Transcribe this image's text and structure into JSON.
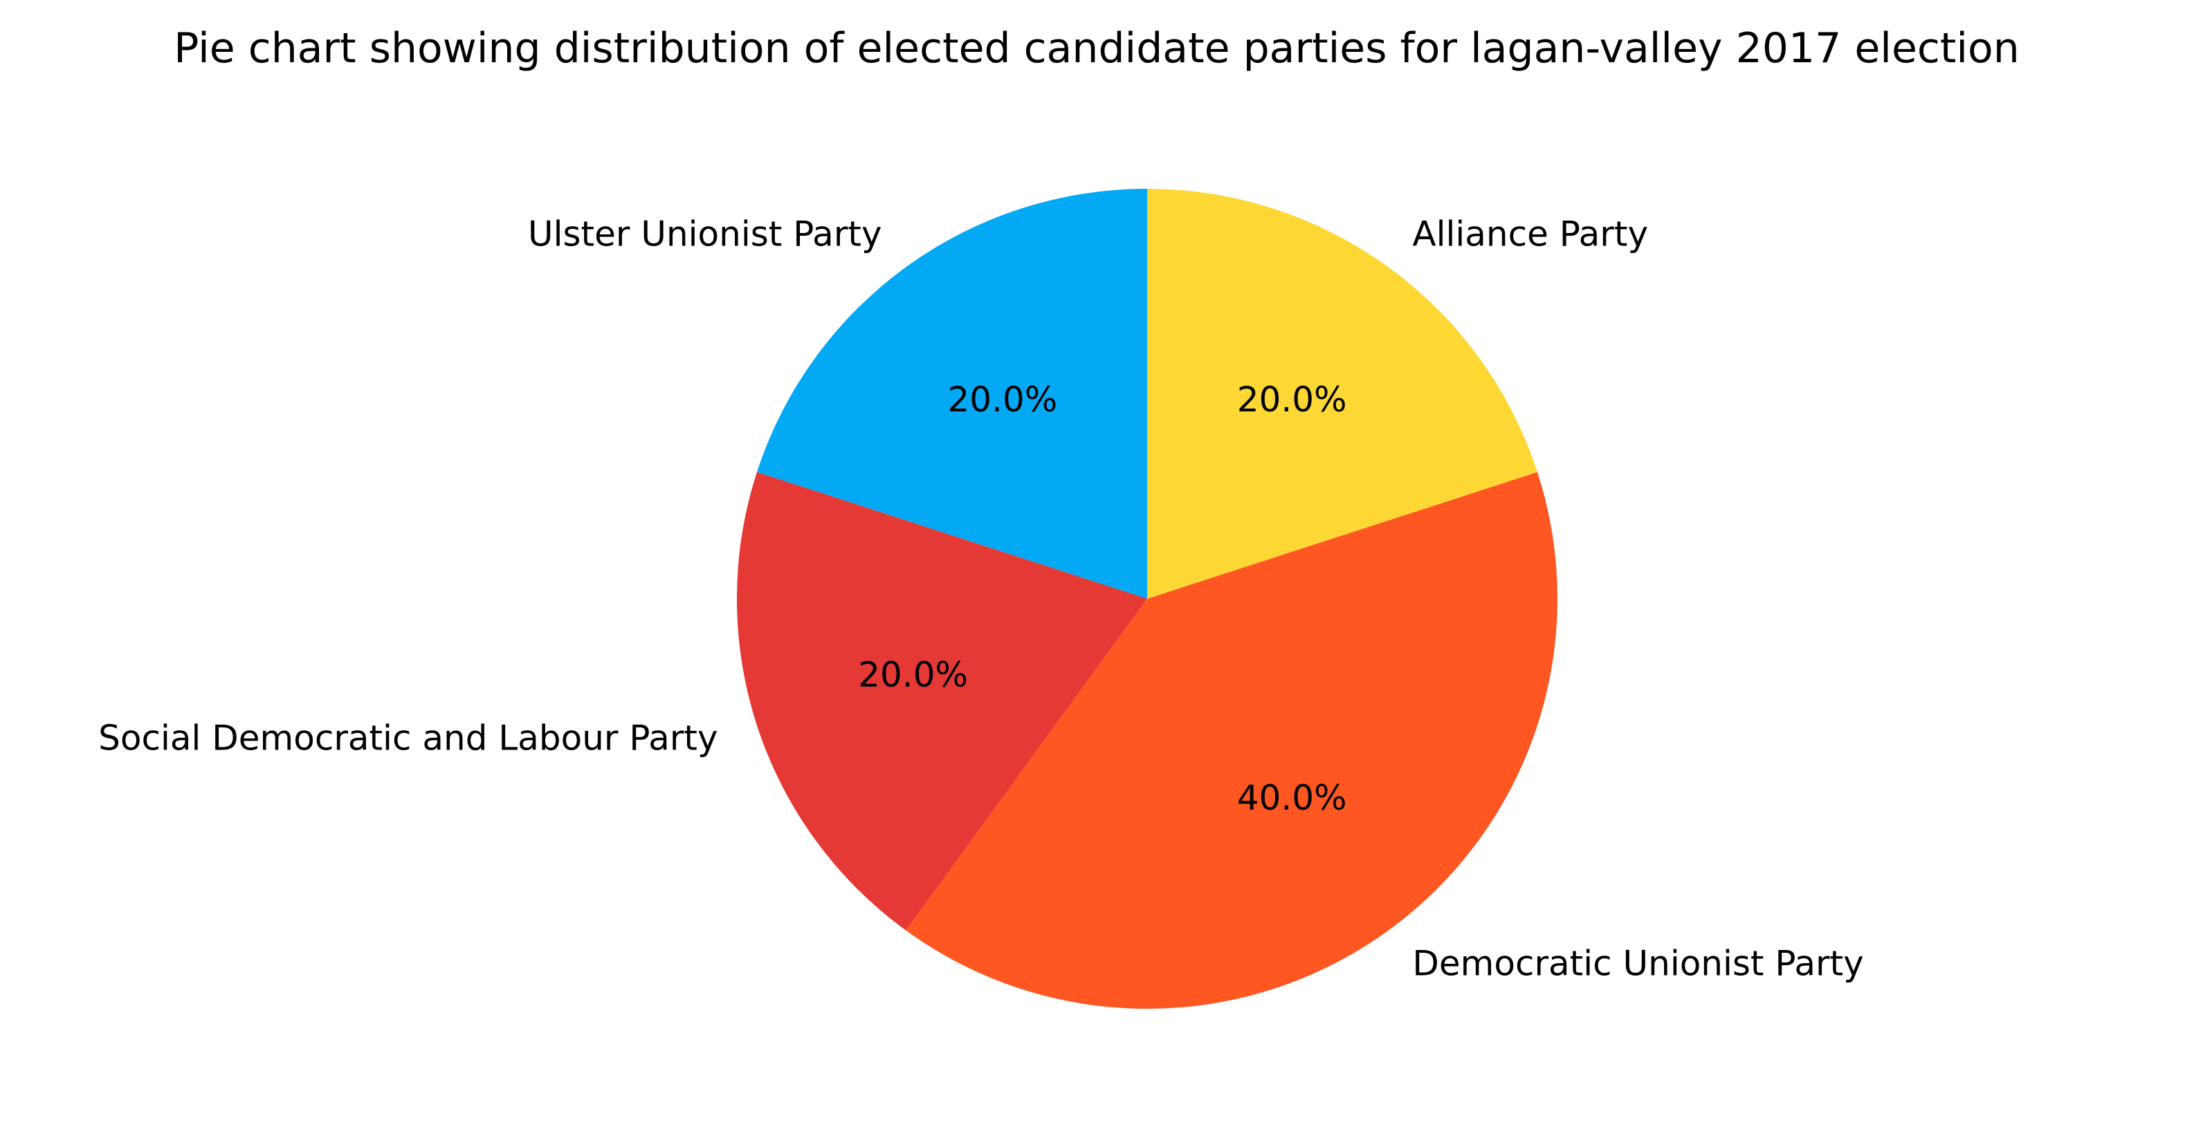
{
  "chart_data": {
    "type": "pie",
    "title": "Pie chart showing distribution of elected candidate parties for lagan-valley 2017 election",
    "start_angle_deg": 90,
    "direction": "counterclockwise",
    "slices": [
      {
        "label": "Ulster Unionist Party",
        "value": 1,
        "percent_label": "20.0%",
        "color": "#03A9F4"
      },
      {
        "label": "Social Democratic and Labour Party",
        "value": 1,
        "percent_label": "20.0%",
        "color": "#E53935"
      },
      {
        "label": "Democratic Unionist Party",
        "value": 2,
        "percent_label": "40.0%",
        "color": "#FF5722"
      },
      {
        "label": "Alliance Party",
        "value": 1,
        "percent_label": "20.0%",
        "color": "#FDD835"
      }
    ]
  }
}
